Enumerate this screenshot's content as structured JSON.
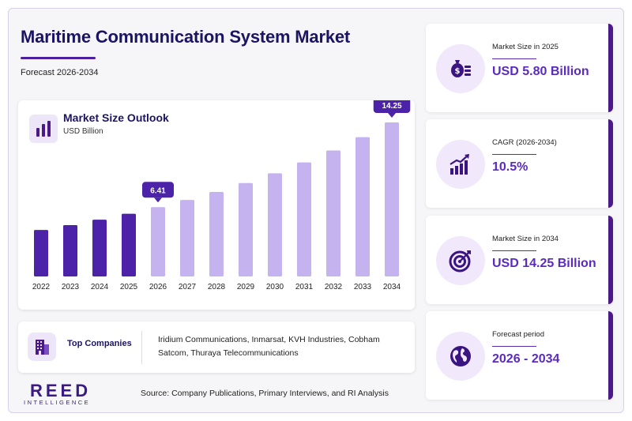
{
  "header": {
    "title": "Maritime Communication System Market",
    "subtitle": "Forecast 2026-2034"
  },
  "chart": {
    "title": "Market Size Outlook",
    "unit": "USD Billion"
  },
  "chart_data": {
    "type": "bar",
    "title": "Market Size Outlook",
    "ylabel": "USD Billion",
    "categories": [
      "2022",
      "2023",
      "2024",
      "2025",
      "2026",
      "2027",
      "2028",
      "2029",
      "2030",
      "2031",
      "2032",
      "2033",
      "2034"
    ],
    "values": [
      4.3,
      4.75,
      5.25,
      5.8,
      6.41,
      7.08,
      7.82,
      8.64,
      9.55,
      10.55,
      11.66,
      12.89,
      14.25
    ],
    "data_labels": [
      {
        "category": "2026",
        "label": "6.41"
      },
      {
        "category": "2034",
        "label": "14.25"
      }
    ],
    "historical_color": "#4b22a8",
    "forecast_color": "#c5b3ef",
    "label_color": "#4b22a8",
    "ylim": [
      0,
      15
    ],
    "grid": false,
    "legend": "none"
  },
  "companies": {
    "label": "Top Companies",
    "list": "Iridium Communications, Inmarsat, KVH Industries, Cobham Satcom, Thuraya Telecommunications"
  },
  "footer": {
    "logo_main": "REED",
    "logo_sub": "INTELLIGENCE",
    "source": "Source: Company Publications, Primary Interviews, and RI Analysis"
  },
  "stats": [
    {
      "label": "Market Size in 2025",
      "value": "USD 5.80 Billion",
      "icon": "money-bag-icon"
    },
    {
      "label": "CAGR (2026-2034)",
      "value": "10.5%",
      "icon": "growth-chart-icon"
    },
    {
      "label": "Market Size in 2034",
      "value": "USD 14.25 Billion",
      "icon": "target-icon"
    },
    {
      "label": "Forecast period",
      "value": "2026 - 2034",
      "icon": "globe-icon"
    }
  ],
  "colors": {
    "title": "#1b1464",
    "accent": "#4b1a86",
    "value": "#5b2bc0"
  }
}
